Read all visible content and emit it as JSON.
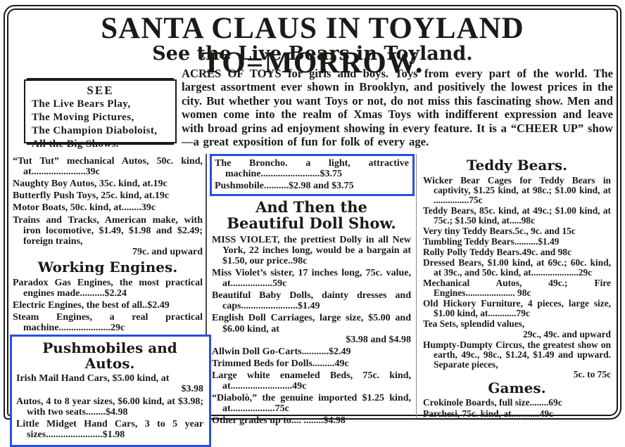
{
  "colors": {
    "ink": "#1c1a17",
    "highlight_blue": "#2b4fdd",
    "paper": "#ffffff"
  },
  "header": {
    "headline": "SANTA CLAUS IN TOYLAND TO=MORROW.",
    "subheadline": "See the Live Bears in Toyland."
  },
  "see_box": {
    "title": "SEE",
    "lines": [
      "The Live Bears Play,",
      "The Moving Pictures,",
      "The Champion Diaboloist,",
      "All the Big Shows."
    ]
  },
  "intro": "ACRES OF TOYS for girls and boys.  Toys from every part of the world. The largest assortment ever shown in Brooklyn, and positively the lowest prices in the city.  But whether you want Toys or not, do not miss this fascinating show.  Men and women come into the realm of Xmas Toys with indifferent expression and leave with broad grins ad enjoyment showing in every feature.  It is a “CHEER UP” show—a great exposition of fun for folk of every age.",
  "left_column": {
    "items": [
      {
        "text": "“Tut Tut” mechanical Autos, 50c. kind, at......................39c"
      },
      {
        "text": "Naughty Boy Autos, 35c. kind, at.19c"
      },
      {
        "text": "Butterfly Push Toys, 25c. kind, at.19c"
      },
      {
        "text": "Motor Boats, 50c. kind, at........39c"
      },
      {
        "text": "Trains and Tracks, American make, with iron locomotive, $1.49, $1.98 and $2.49; foreign trains,",
        "tail": "79c. and upward"
      }
    ],
    "working_engines": {
      "heading": "Working Engines.",
      "items": [
        {
          "text": "Paradox Gas Engines, the most practical engines made..........$2.24"
        },
        {
          "text": "Electric Engines, the best of all..$2.49"
        },
        {
          "text": "Steam Engines, a real practical machine.....................29c"
        }
      ]
    },
    "pushmobiles": {
      "heading": "Pushmobiles and Autos.",
      "items": [
        {
          "text": "Irish Mail Hand Cars, $5.00 kind, at",
          "tail": "$3.98"
        },
        {
          "text": "Autos, 4 to 8 year sizes, $6.00 kind, at $3.98; with two seats........$4.98"
        },
        {
          "text": "Little Midget Hand Cars, 3 to 5 year sizes.......................$1.98"
        }
      ]
    }
  },
  "middle_column": {
    "broncho_box": {
      "items": [
        {
          "text": "The Broncho. a light, attractive machine........................$3.75"
        },
        {
          "text": "Pushmobile..........$2.98 and $3.75"
        }
      ]
    },
    "doll_show": {
      "heading": "And Then the Beautiful Doll Show.",
      "items": [
        {
          "text": "MISS VIOLET, the prettiest Dolly in all New York, 22 inches long, would be a bargain at $1.50, our price..98c"
        },
        {
          "text": "Miss Violet’s sister, 17 inches long, 75c. value, at.................59c"
        },
        {
          "text": "Beautiful Baby Dolls, dainty dresses and caps.......................$1.49"
        },
        {
          "text": "English Doll Carriages, large size, $5.00 and $6.00 kind, at",
          "tail": "$3.98 and $4.98"
        },
        {
          "text": "Allwin Doll Go-Carts...........$2.49"
        },
        {
          "text": "Trimmed Beds for Dolls.........49c"
        },
        {
          "text": "Large white enameled Beds, 75c. kind, at.........................49c"
        },
        {
          "text": "“Diabolò,” the genuine imported $1.25 kind, at..................75c"
        },
        {
          "text": "Other grades up to.... ........$4.98"
        }
      ]
    }
  },
  "right_column": {
    "teddy_bears": {
      "heading": "Teddy Bears.",
      "items": [
        {
          "text": "Wicker Bear Cages for Teddy Bears in captivity, $1.25 kind, at 98c.; $1.00 kind, at ...............75c"
        },
        {
          "text": "Teddy Bears, 85c. kind, at 49c.; $1.00 kind, at 75c.; $1.50 kind, at.....98c"
        },
        {
          "text": "Very tiny Teddy Bears.5c., 9c. and 15c"
        },
        {
          "text": "Tumbling Teddy Bears..........$1.49"
        },
        {
          "text": "Rolly Polly Teddy Bears.49c. and 98c"
        },
        {
          "text": "Dressed Bears, $1.00 kind, at 69c.; 60c. kind, at 39c., and 50c. kind, at....................29c"
        },
        {
          "text": "Mechanical Autos, 49c.; Fire Engines..................... 98c"
        },
        {
          "text": "Old Hickory Furniture, 4 pieces, large size, $1.00 kind, at............79c"
        },
        {
          "text": "Tea Sets, splendid values,",
          "tail": "29c., 49c. and upward"
        },
        {
          "text": "Humpty-Dumpty Circus, the greatest show on earth, 49c., 98c., $1.24, $1.49 and upward.  Separate pieces,",
          "tail": "5c. to 75c"
        }
      ]
    },
    "games": {
      "heading": "Games.",
      "items": [
        {
          "text": "Crokinole Boards, full size........69c"
        },
        {
          "text": "Parchesi, 75c. kind, at............49c"
        }
      ]
    }
  }
}
